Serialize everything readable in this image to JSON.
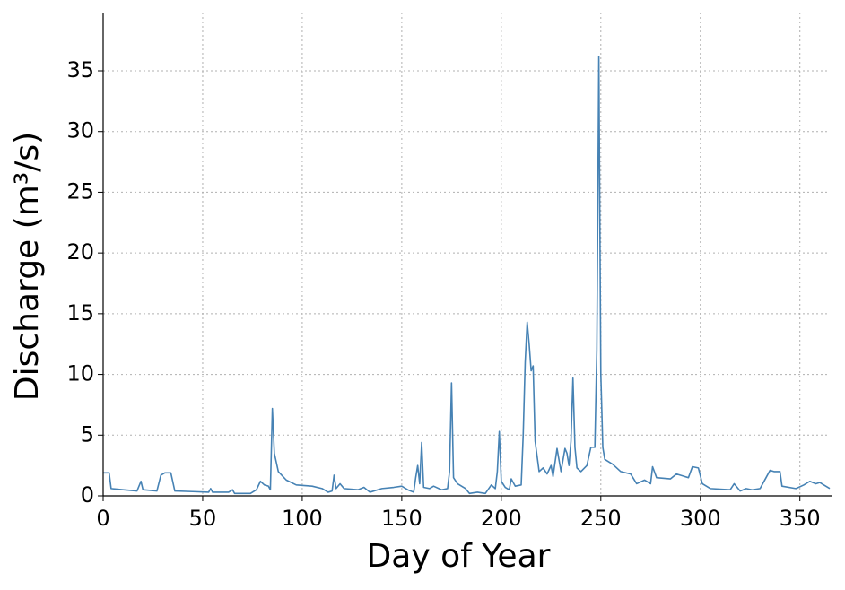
{
  "chart_data": {
    "type": "line",
    "xlabel": "Day of Year",
    "ylabel": "Discharge (m³/s)",
    "x": [
      0,
      3,
      4,
      10,
      17,
      19,
      20,
      27,
      29,
      31,
      34,
      36,
      45,
      53,
      54,
      55,
      63,
      65,
      66,
      74,
      77,
      79,
      81,
      83,
      84,
      85,
      86,
      88,
      92,
      97,
      105,
      110,
      113,
      115,
      116,
      117,
      119,
      121,
      128,
      131,
      134,
      140,
      146,
      150,
      153,
      156,
      157,
      158,
      159,
      160,
      161,
      164,
      166,
      170,
      173,
      174,
      175,
      176,
      178,
      182,
      184,
      188,
      192,
      195,
      197,
      198,
      199,
      200,
      202,
      204,
      205,
      207,
      210,
      211,
      212,
      213,
      214,
      215,
      216,
      217,
      219,
      221,
      223,
      225,
      226,
      228,
      230,
      232,
      233,
      234,
      235,
      236,
      237,
      238,
      240,
      243,
      245,
      247,
      248,
      249,
      250,
      251,
      252,
      256,
      260,
      265,
      268,
      272,
      275,
      276,
      278,
      285,
      288,
      294,
      296,
      299,
      301,
      305,
      315,
      317,
      320,
      323,
      326,
      330,
      333,
      335,
      337,
      340,
      341,
      348,
      352,
      355,
      358,
      360,
      362,
      365
    ],
    "series": [
      {
        "name": "Discharge",
        "color": "#4682b4",
        "values": [
          1.9,
          1.9,
          0.6,
          0.5,
          0.4,
          1.2,
          0.5,
          0.4,
          1.7,
          1.9,
          1.9,
          0.4,
          0.35,
          0.3,
          0.6,
          0.3,
          0.3,
          0.5,
          0.2,
          0.2,
          0.5,
          1.2,
          0.9,
          0.8,
          0.5,
          7.2,
          3.5,
          2.0,
          1.3,
          0.9,
          0.8,
          0.6,
          0.3,
          0.4,
          1.7,
          0.6,
          1.0,
          0.6,
          0.5,
          0.7,
          0.3,
          0.6,
          0.7,
          0.8,
          0.5,
          0.3,
          1.5,
          2.5,
          1.0,
          4.4,
          0.7,
          0.6,
          0.8,
          0.5,
          0.6,
          2.0,
          9.3,
          1.5,
          1.0,
          0.6,
          0.2,
          0.3,
          0.2,
          0.9,
          0.6,
          2.0,
          5.3,
          1.2,
          0.7,
          0.5,
          1.4,
          0.8,
          0.9,
          5.0,
          11,
          14.3,
          12.5,
          10.3,
          10.7,
          4.5,
          2.0,
          2.3,
          1.8,
          2.5,
          1.6,
          3.9,
          2.0,
          3.9,
          3.5,
          2.5,
          4.5,
          9.7,
          4.0,
          2.3,
          2.0,
          2.5,
          4.0,
          4.0,
          12,
          36.2,
          10,
          4.0,
          3.0,
          2.6,
          2.0,
          1.8,
          1.0,
          1.3,
          1.0,
          2.4,
          1.5,
          1.4,
          1.8,
          1.5,
          2.4,
          2.3,
          1.0,
          0.6,
          0.5,
          1.0,
          0.4,
          0.6,
          0.5,
          0.6,
          1.5,
          2.1,
          2.0,
          2.0,
          0.8,
          0.6,
          0.9,
          1.2,
          1.0,
          1.1,
          0.9,
          0.6
        ]
      }
    ],
    "xlim": [
      0,
      365
    ],
    "xticks": [
      0,
      50,
      100,
      150,
      200,
      250,
      300,
      350
    ],
    "ylim": [
      0,
      39.8
    ],
    "yticks": [
      0,
      5,
      10,
      15,
      20,
      25,
      30,
      35
    ],
    "grid": true
  }
}
